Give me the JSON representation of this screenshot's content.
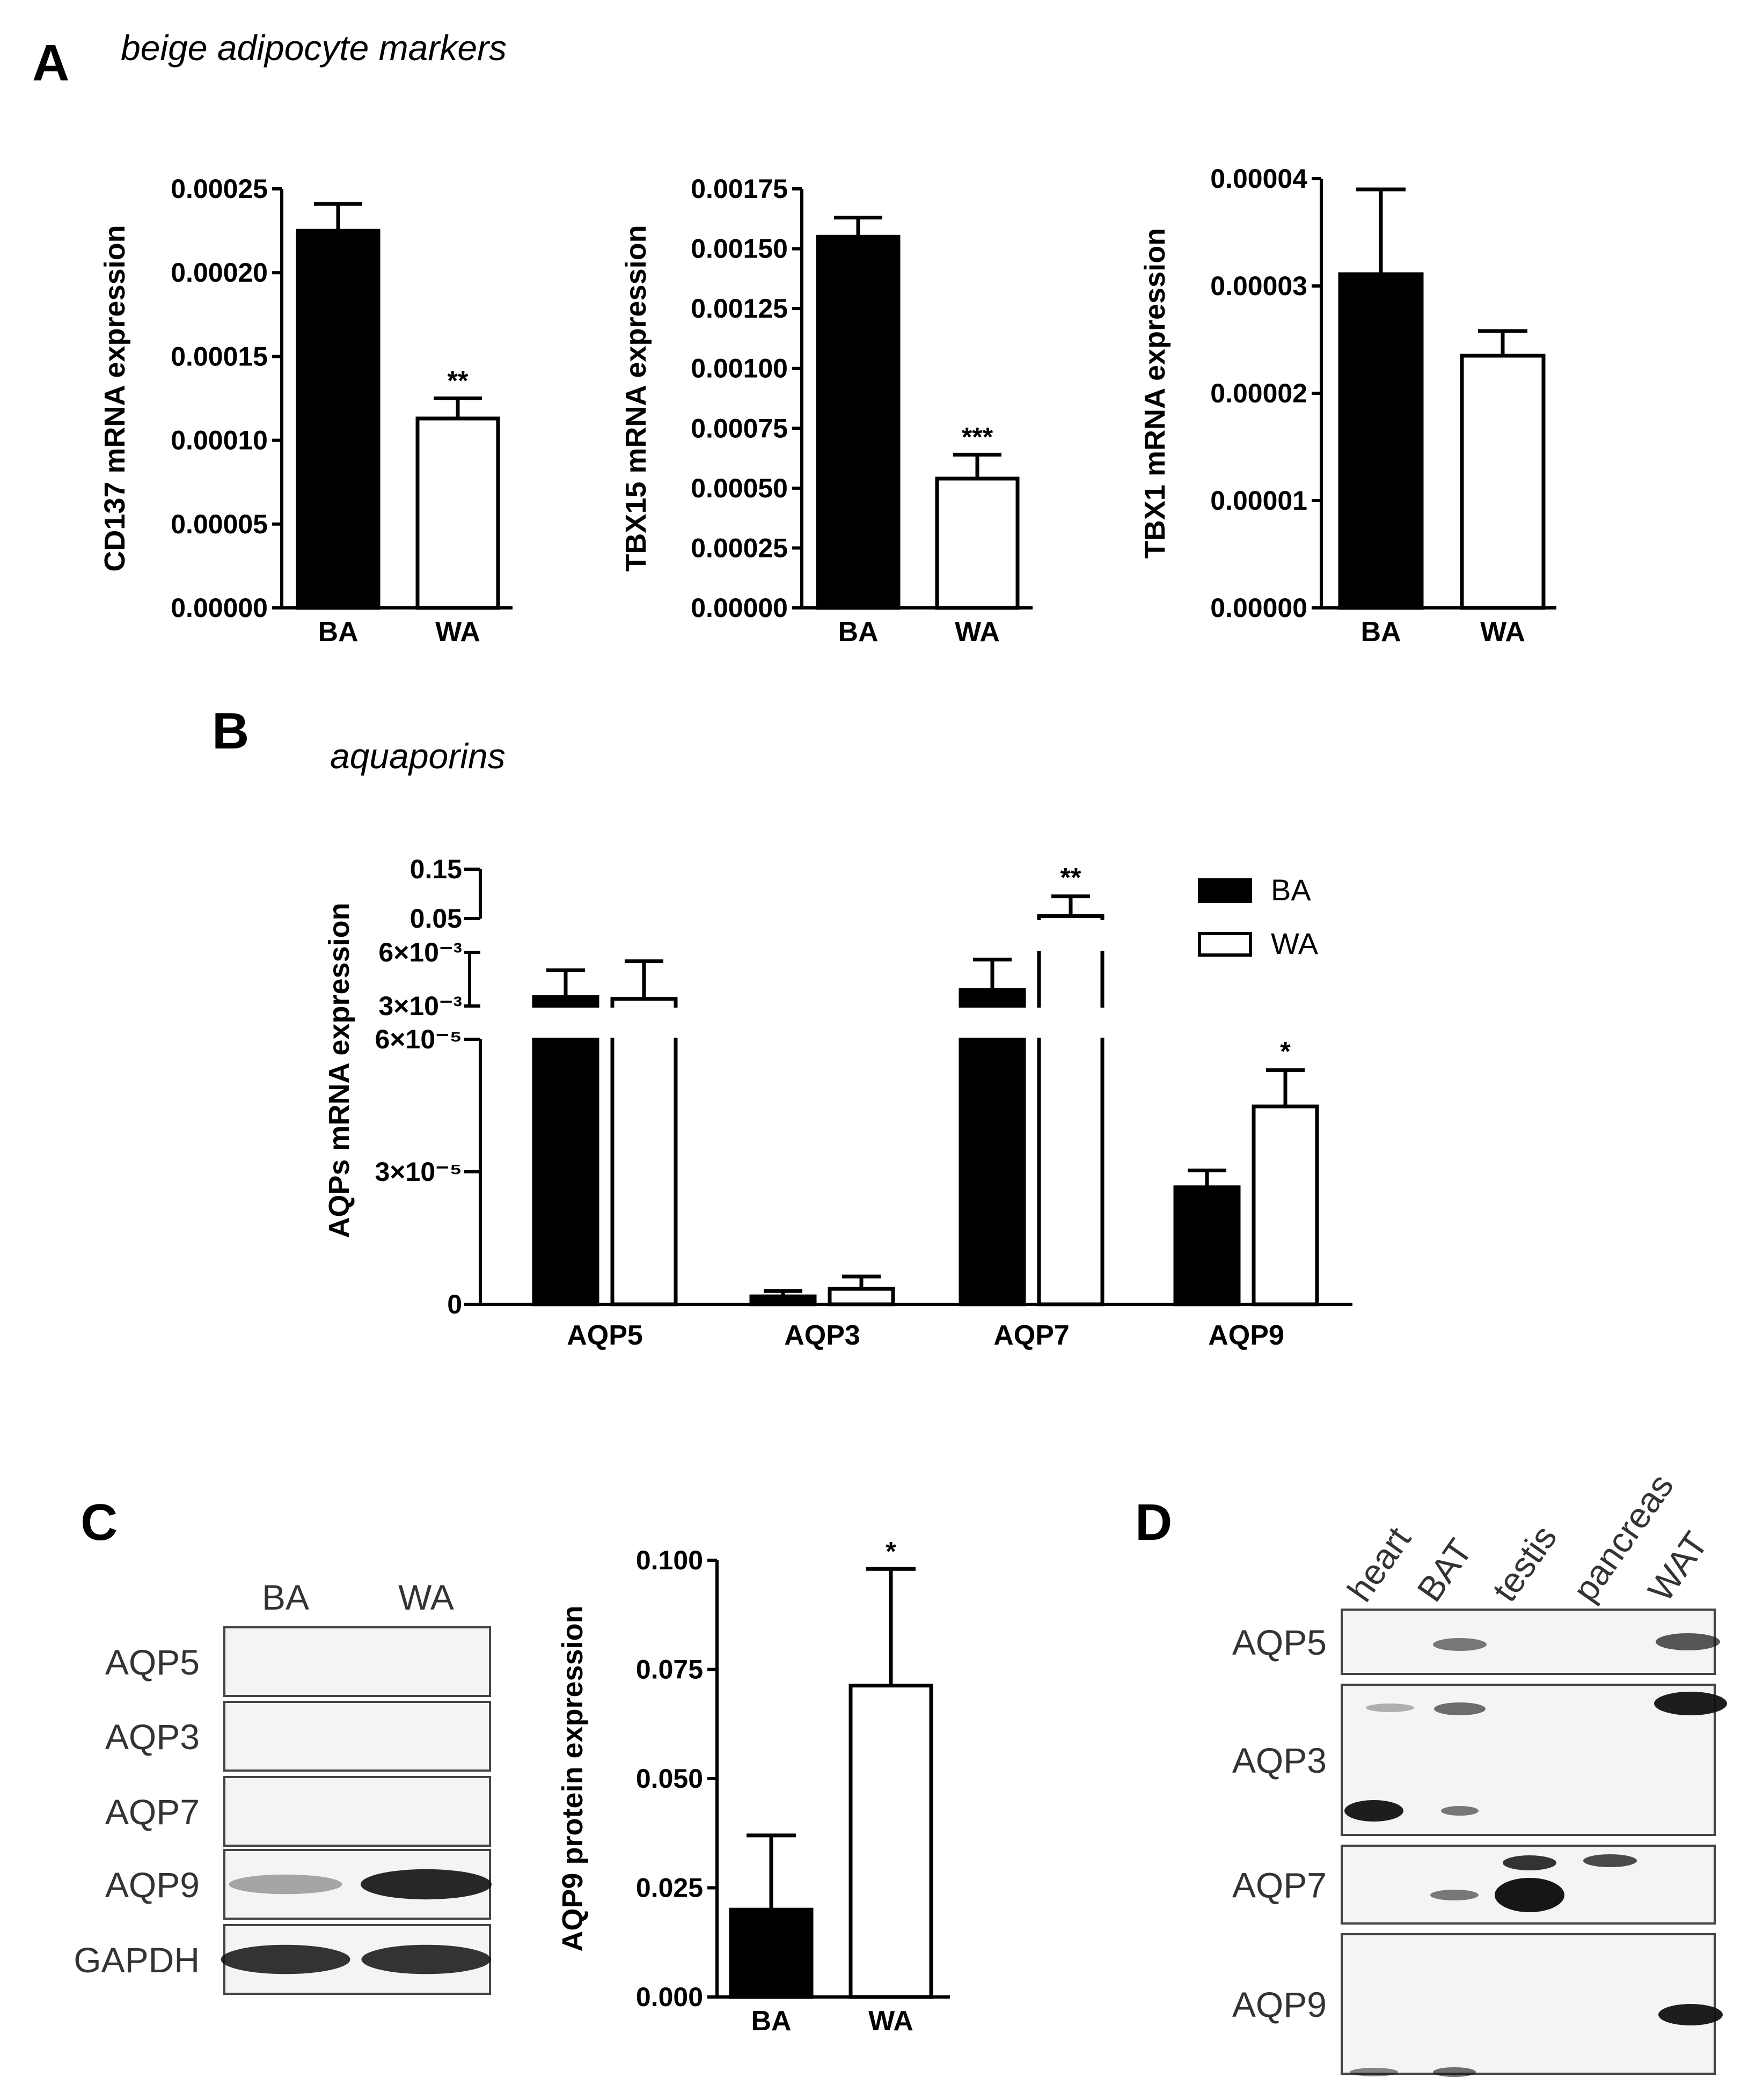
{
  "panels": {
    "A": {
      "letter": "A",
      "title": "beige adipocyte markers"
    },
    "B": {
      "letter": "B",
      "title": "aquaporins"
    },
    "C": {
      "letter": "C"
    },
    "D": {
      "letter": "D"
    }
  },
  "chart_data": [
    {
      "id": "A1",
      "type": "bar",
      "categories": [
        "BA",
        "WA"
      ],
      "values": [
        0.000225,
        0.000113
      ],
      "errors": [
        1.6e-05,
        1.2e-05
      ],
      "significance": [
        "",
        "**"
      ],
      "fills": [
        "#000000",
        "#ffffff"
      ],
      "ylabel": "CD137 mRNA expression",
      "ylim": [
        0,
        0.00025
      ],
      "yticks": [
        "0.00000",
        "0.00005",
        "0.00010",
        "0.00015",
        "0.00020",
        "0.00025"
      ]
    },
    {
      "id": "A2",
      "type": "bar",
      "categories": [
        "BA",
        "WA"
      ],
      "values": [
        0.00155,
        0.00054
      ],
      "errors": [
        8e-05,
        0.0001
      ],
      "significance": [
        "",
        "***"
      ],
      "fills": [
        "#000000",
        "#ffffff"
      ],
      "ylabel": "TBX15 mRNA expression",
      "ylim": [
        0,
        0.00175
      ],
      "yticks": [
        "0.00000",
        "0.00025",
        "0.00050",
        "0.00075",
        "0.00100",
        "0.00125",
        "0.00150",
        "0.00175"
      ]
    },
    {
      "id": "A3",
      "type": "bar",
      "categories": [
        "BA",
        "WA"
      ],
      "values": [
        3.11e-05,
        2.35e-05
      ],
      "errors": [
        7.9e-06,
        2.3e-06
      ],
      "significance": [
        "",
        ""
      ],
      "fills": [
        "#000000",
        "#ffffff"
      ],
      "ylabel": "TBX1 mRNA expression",
      "ylim": [
        0,
        4e-05
      ],
      "yticks": [
        "0.00000",
        "0.00001",
        "0.00002",
        "0.00003",
        "0.00004"
      ]
    },
    {
      "id": "B",
      "type": "bar",
      "categories": [
        "AQP5",
        "AQP3",
        "AQP7",
        "AQP9"
      ],
      "series": [
        {
          "name": "BA",
          "color": "#000000",
          "values": [
            0.0035,
            1.8e-06,
            0.0039,
            2.65e-05
          ],
          "errors": [
            0.0015,
            1.2e-06,
            0.0017,
            3.8e-06
          ]
        },
        {
          "name": "WA",
          "color": "#ffffff",
          "values": [
            0.0034,
            3.5e-06,
            0.055,
            4.48e-05
          ],
          "errors": [
            0.0021,
            2.8e-06,
            0.04,
            8.2e-06
          ]
        }
      ],
      "significance": [
        [
          "",
          ""
        ],
        [
          "",
          ""
        ],
        [
          "",
          "**"
        ],
        [
          "",
          "*"
        ]
      ],
      "ylabel": "AQPs mRNA expression",
      "axis_breaks": "segmented y-axis: 0–6×10⁻⁵, 3×10⁻³–6×10⁻³, 0.05–0.15",
      "yticks": [
        {
          "label": "0",
          "value": 0
        },
        {
          "label": "3×10⁻⁵",
          "value": 3e-05
        },
        {
          "label": "6×10⁻⁵",
          "value": 6e-05
        },
        {
          "label": "3×10⁻³",
          "value": 0.003
        },
        {
          "label": "6×10⁻³",
          "value": 0.006
        },
        {
          "label": "0.05",
          "value": 0.05
        },
        {
          "label": "0.15",
          "value": 0.15
        }
      ],
      "legend": [
        "BA",
        "WA"
      ],
      "legend_position": "top-right"
    },
    {
      "id": "C",
      "type": "bar",
      "categories": [
        "BA",
        "WA"
      ],
      "values": [
        0.02,
        0.0713
      ],
      "errors": [
        0.017,
        0.0267
      ],
      "significance": [
        "",
        "*"
      ],
      "fills": [
        "#000000",
        "#ffffff"
      ],
      "ylabel": "AQP9 protein expression",
      "ylim": [
        0,
        0.1
      ],
      "yticks": [
        "0.000",
        "0.025",
        "0.050",
        "0.075",
        "0.100"
      ]
    }
  ],
  "blotC": {
    "lanes": [
      "BA",
      "WA"
    ],
    "rows": [
      {
        "label": "AQP5",
        "bands": [
          0,
          0
        ]
      },
      {
        "label": "AQP3",
        "bands": [
          0,
          0
        ]
      },
      {
        "label": "AQP7",
        "bands": [
          0,
          0
        ]
      },
      {
        "label": "AQP9",
        "bands": [
          0.35,
          0.9
        ]
      },
      {
        "label": "GAPDH",
        "bands": [
          0.85,
          0.85
        ]
      }
    ]
  },
  "blotD": {
    "lanes": [
      "heart",
      "BAT",
      "testis",
      "pancreas",
      "WAT"
    ],
    "rows": [
      {
        "label": "AQP5"
      },
      {
        "label": "AQP3"
      },
      {
        "label": "AQP7"
      },
      {
        "label": "AQP9"
      }
    ]
  }
}
